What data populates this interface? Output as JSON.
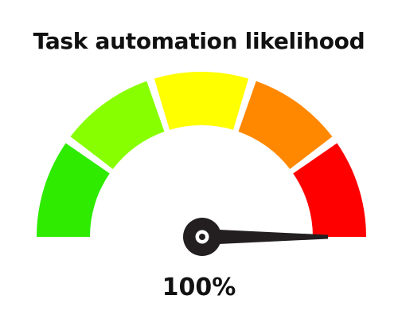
{
  "gauge": {
    "title": "Task automation likelihood",
    "value_label": "100%",
    "value_percent": 100,
    "segment_colors": [
      "#2EEB00",
      "#88FF00",
      "#FFFF00",
      "#FF8800",
      "#FF0000"
    ],
    "needle_color": "#231f20",
    "hub_center_color": "#ffffff"
  }
}
